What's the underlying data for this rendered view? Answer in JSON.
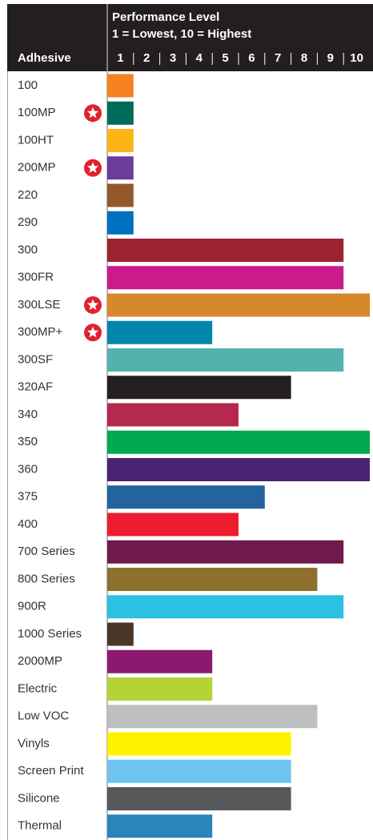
{
  "chart_data": {
    "type": "bar",
    "orientation": "horizontal",
    "title": "Performance Level",
    "subtitle": "1 = Lowest, 10 = Highest",
    "ylabel": "Adhesive",
    "categories": [
      "100",
      "100MP",
      "100HT",
      "200MP",
      "220",
      "290",
      "300",
      "300FR",
      "300LSE",
      "300MP+",
      "300SF",
      "320AF",
      "340",
      "350",
      "360",
      "375",
      "400",
      "700 Series",
      "800 Series",
      "900R",
      "1000 Series",
      "2000MP",
      "Electric",
      "Low VOC",
      "Vinyls",
      "Screen Print",
      "Silicone",
      "Thermal"
    ],
    "values": [
      1,
      1,
      1,
      1,
      1,
      1,
      9,
      9,
      10,
      4,
      9,
      7,
      5,
      10,
      10,
      6,
      5,
      9,
      8,
      9,
      1,
      4,
      4,
      8,
      7,
      7,
      7,
      4
    ],
    "colors": [
      "#f58220",
      "#006b5a",
      "#fdb515",
      "#6a3d9a",
      "#93592a",
      "#0070c0",
      "#9e2330",
      "#cc1a8a",
      "#d6882a",
      "#0086ad",
      "#52b3ae",
      "#231f20",
      "#b5294e",
      "#00a94f",
      "#4a2372",
      "#23649e",
      "#ed1c2e",
      "#6f1a4a",
      "#8f6f2e",
      "#2cc0e3",
      "#4a3728",
      "#8a1a6e",
      "#b5d334",
      "#bcbec0",
      "#fff200",
      "#6cc4ef",
      "#58595b",
      "#2a86b8"
    ],
    "highlighted": [
      false,
      true,
      false,
      true,
      false,
      false,
      false,
      false,
      true,
      true,
      false,
      false,
      false,
      false,
      false,
      false,
      false,
      false,
      false,
      false,
      false,
      false,
      false,
      false,
      false,
      false,
      false,
      false
    ],
    "xlim": [
      0,
      10
    ],
    "xticks": [
      1,
      2,
      3,
      4,
      5,
      6,
      7,
      8,
      9,
      10
    ]
  }
}
